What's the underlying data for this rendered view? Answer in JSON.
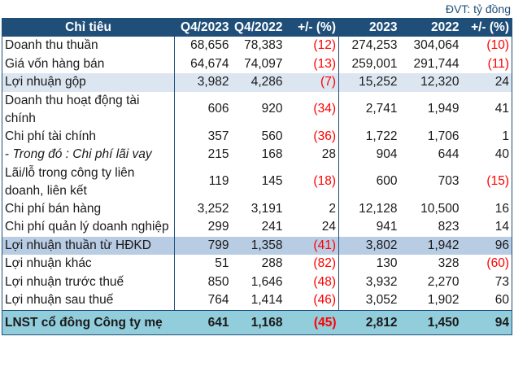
{
  "unit_note": "ĐVT: tỷ đồng",
  "colors": {
    "header_bg": "#1f4e79",
    "header_text": "#ffffff",
    "highlight_light": "#dce6f1",
    "highlight_blue": "#b8cce4",
    "total_bg": "#92cddc",
    "negative_text": "#ff0000"
  },
  "table": {
    "headers": [
      "Chỉ tiêu",
      "Q4/2023",
      "Q4/2022",
      "+/- (%)",
      "2023",
      "2022",
      "+/- (%)"
    ],
    "rows": [
      {
        "label": "Doanh thu thuần",
        "q4_2023": "68,656",
        "q4_2022": "78,383",
        "q_change": "(12)",
        "y2023": "274,253",
        "y2022": "304,064",
        "y_change": "(10)"
      },
      {
        "label": "Giá vốn hàng bán",
        "q4_2023": "64,674",
        "q4_2022": "74,097",
        "q_change": "(13)",
        "y2023": "259,001",
        "y2022": "291,744",
        "y_change": "(11)"
      },
      {
        "label": "Lợi nhuận gộp",
        "q4_2023": "3,982",
        "q4_2022": "4,286",
        "q_change": "(7)",
        "y2023": "15,252",
        "y2022": "12,320",
        "y_change": "24"
      },
      {
        "label": "Doanh thu hoạt động tài chính",
        "q4_2023": "606",
        "q4_2022": "920",
        "q_change": "(34)",
        "y2023": "2,741",
        "y2022": "1,949",
        "y_change": "41"
      },
      {
        "label": "Chi phí tài chính",
        "q4_2023": "357",
        "q4_2022": "560",
        "q_change": "(36)",
        "y2023": "1,722",
        "y2022": "1,706",
        "y_change": "1"
      },
      {
        "label_prefix": "- ",
        "label": "Trong đó : Chi phí lãi vay",
        "q4_2023": "215",
        "q4_2022": "168",
        "q_change": "28",
        "y2023": "904",
        "y2022": "644",
        "y_change": "40"
      },
      {
        "label": "Lãi/lỗ trong công ty liên doanh, liên kết",
        "q4_2023": "119",
        "q4_2022": "145",
        "q_change": "(18)",
        "y2023": "600",
        "y2022": "703",
        "y_change": "(15)"
      },
      {
        "label": "Chi phí bán hàng",
        "q4_2023": "3,252",
        "q4_2022": "3,191",
        "q_change": "2",
        "y2023": "12,128",
        "y2022": "10,500",
        "y_change": "16"
      },
      {
        "label": "Chi phí quản lý doanh nghiệp",
        "q4_2023": "299",
        "q4_2022": "241",
        "q_change": "24",
        "y2023": "941",
        "y2022": "823",
        "y_change": "14"
      },
      {
        "label": "Lợi nhuận thuần từ HĐKD",
        "q4_2023": "799",
        "q4_2022": "1,358",
        "q_change": "(41)",
        "y2023": "3,802",
        "y2022": "1,942",
        "y_change": "96"
      },
      {
        "label": "Lợi nhuận khác",
        "q4_2023": "51",
        "q4_2022": "288",
        "q_change": "(82)",
        "y2023": "130",
        "y2022": "328",
        "y_change": "(60)"
      },
      {
        "label": "Lợi nhuận trước thuế",
        "q4_2023": "850",
        "q4_2022": "1,646",
        "q_change": "(48)",
        "y2023": "3,932",
        "y2022": "2,270",
        "y_change": "73"
      },
      {
        "label": "Lợi nhuận sau thuế",
        "q4_2023": "764",
        "q4_2022": "1,414",
        "q_change": "(46)",
        "y2023": "3,052",
        "y2022": "1,902",
        "y_change": "60"
      },
      {
        "label": "LNST cổ đông Công ty mẹ",
        "q4_2023": "641",
        "q4_2022": "1,168",
        "q_change": "(45)",
        "y2023": "2,812",
        "y2022": "1,450",
        "y_change": "94"
      }
    ]
  }
}
